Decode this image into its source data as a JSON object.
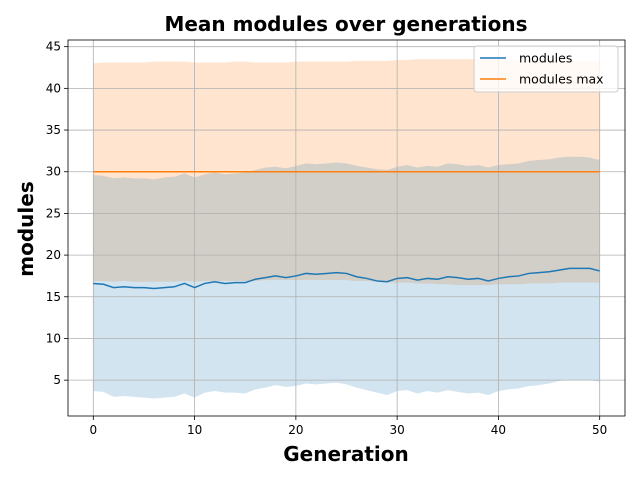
{
  "chart_data": {
    "type": "line",
    "title": "Mean modules over generations",
    "xlabel": "Generation",
    "ylabel": "modules",
    "xlim": [
      -2.5,
      52.5
    ],
    "ylim": [
      0.7,
      45.8
    ],
    "xticks": [
      0,
      10,
      20,
      30,
      40,
      50
    ],
    "yticks": [
      5,
      10,
      15,
      20,
      25,
      30,
      35,
      40,
      45
    ],
    "grid": true,
    "legend_position": "top-right",
    "x": [
      0,
      1,
      2,
      3,
      4,
      5,
      6,
      7,
      8,
      9,
      10,
      11,
      12,
      13,
      14,
      15,
      16,
      17,
      18,
      19,
      20,
      21,
      22,
      23,
      24,
      25,
      26,
      27,
      28,
      29,
      30,
      31,
      32,
      33,
      34,
      35,
      36,
      37,
      38,
      39,
      40,
      41,
      42,
      43,
      44,
      45,
      46,
      47,
      48,
      49,
      50
    ],
    "series": [
      {
        "name": "modules",
        "color": "#1f77b4",
        "values": [
          16.6,
          16.5,
          16.1,
          16.2,
          16.1,
          16.1,
          16.0,
          16.1,
          16.2,
          16.6,
          16.1,
          16.6,
          16.8,
          16.6,
          16.7,
          16.7,
          17.1,
          17.3,
          17.5,
          17.3,
          17.5,
          17.8,
          17.7,
          17.8,
          17.9,
          17.8,
          17.4,
          17.2,
          16.9,
          16.8,
          17.2,
          17.3,
          17.0,
          17.2,
          17.1,
          17.4,
          17.3,
          17.1,
          17.2,
          16.9,
          17.2,
          17.4,
          17.5,
          17.8,
          17.9,
          18.0,
          18.2,
          18.4,
          18.4,
          18.4,
          18.1
        ],
        "band_lower": [
          3.7,
          3.6,
          3.0,
          3.1,
          3.0,
          2.9,
          2.8,
          2.9,
          3.0,
          3.4,
          2.9,
          3.5,
          3.7,
          3.5,
          3.5,
          3.4,
          3.9,
          4.1,
          4.4,
          4.2,
          4.3,
          4.6,
          4.5,
          4.6,
          4.7,
          4.5,
          4.1,
          3.8,
          3.5,
          3.2,
          3.7,
          3.8,
          3.4,
          3.7,
          3.5,
          3.8,
          3.6,
          3.4,
          3.5,
          3.2,
          3.7,
          3.9,
          4.0,
          4.3,
          4.4,
          4.6,
          4.9,
          5.0,
          5.0,
          5.0,
          4.8
        ],
        "band_upper": [
          29.6,
          29.5,
          29.2,
          29.3,
          29.2,
          29.2,
          29.1,
          29.3,
          29.4,
          29.8,
          29.3,
          29.7,
          29.9,
          29.7,
          29.8,
          29.9,
          30.2,
          30.5,
          30.6,
          30.4,
          30.7,
          31.0,
          30.9,
          31.0,
          31.1,
          31.0,
          30.7,
          30.5,
          30.3,
          30.2,
          30.6,
          30.8,
          30.5,
          30.7,
          30.6,
          31.0,
          30.9,
          30.7,
          30.8,
          30.5,
          30.8,
          30.9,
          31.0,
          31.3,
          31.4,
          31.5,
          31.7,
          31.8,
          31.8,
          31.7,
          31.4
        ]
      },
      {
        "name": "modules max",
        "color": "#ff7f0e",
        "values": [
          30,
          30,
          30,
          30,
          30,
          30,
          30,
          30,
          30,
          30,
          30,
          30,
          30,
          30,
          30,
          30,
          30,
          30,
          30,
          30,
          30,
          30,
          30,
          30,
          30,
          30,
          30,
          30,
          30,
          30,
          30,
          30,
          30,
          30,
          30,
          30,
          30,
          30,
          30,
          30,
          30,
          30,
          30,
          30,
          30,
          30,
          30,
          30,
          30,
          30,
          30
        ],
        "band_lower": [
          16.9,
          16.9,
          16.8,
          16.9,
          16.8,
          16.8,
          16.8,
          16.8,
          16.8,
          16.9,
          16.8,
          16.9,
          16.9,
          16.9,
          16.9,
          16.9,
          16.9,
          17.0,
          17.0,
          17.0,
          17.0,
          17.0,
          17.0,
          17.0,
          17.0,
          17.0,
          16.9,
          16.9,
          16.8,
          16.7,
          16.7,
          16.7,
          16.6,
          16.6,
          16.5,
          16.5,
          16.4,
          16.4,
          16.4,
          16.4,
          16.5,
          16.5,
          16.5,
          16.6,
          16.6,
          16.6,
          16.7,
          16.7,
          16.7,
          16.7,
          16.7
        ],
        "band_upper": [
          43.0,
          43.1,
          43.1,
          43.1,
          43.1,
          43.1,
          43.2,
          43.2,
          43.2,
          43.2,
          43.1,
          43.1,
          43.1,
          43.1,
          43.2,
          43.2,
          43.1,
          43.1,
          43.1,
          43.1,
          43.2,
          43.2,
          43.2,
          43.2,
          43.2,
          43.2,
          43.3,
          43.3,
          43.3,
          43.3,
          43.4,
          43.4,
          43.5,
          43.5,
          43.5,
          43.5,
          43.5,
          43.5,
          43.5,
          43.5,
          43.5,
          43.4,
          43.4,
          43.4,
          43.4,
          43.4,
          43.4,
          43.3,
          43.3,
          43.3,
          43.2
        ]
      }
    ]
  }
}
